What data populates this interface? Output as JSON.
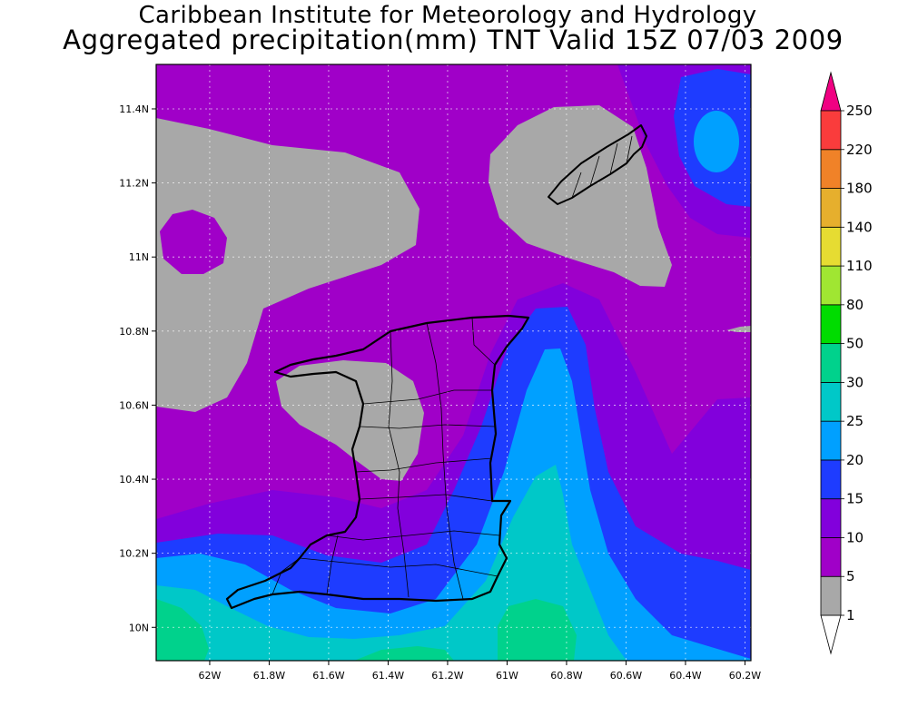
{
  "title": {
    "line1": "Caribbean Institute for Meteorology and Hydrology",
    "line2": "Aggregated precipitation(mm) TNT Valid 15Z 07/03 2009"
  },
  "map": {
    "lon_range": [
      -62.18,
      -60.18
    ],
    "lat_range": [
      9.91,
      11.52
    ],
    "x_ticks": [
      {
        "value": -62.0,
        "label": "62W"
      },
      {
        "value": -61.8,
        "label": "61.8W"
      },
      {
        "value": -61.6,
        "label": "61.6W"
      },
      {
        "value": -61.4,
        "label": "61.4W"
      },
      {
        "value": -61.2,
        "label": "61.2W"
      },
      {
        "value": -61.0,
        "label": "61W"
      },
      {
        "value": -60.8,
        "label": "60.8W"
      },
      {
        "value": -60.6,
        "label": "60.6W"
      },
      {
        "value": -60.4,
        "label": "60.4W"
      },
      {
        "value": -60.2,
        "label": "60.2W"
      }
    ],
    "y_ticks": [
      {
        "value": 10.0,
        "label": "10N"
      },
      {
        "value": 10.2,
        "label": "10.2N"
      },
      {
        "value": 10.4,
        "label": "10.4N"
      },
      {
        "value": 10.6,
        "label": "10.6N"
      },
      {
        "value": 10.8,
        "label": "10.8N"
      },
      {
        "value": 11.0,
        "label": "11N"
      },
      {
        "value": 11.2,
        "label": "11.2N"
      },
      {
        "value": 11.4,
        "label": "11.4N"
      }
    ],
    "grid": true
  },
  "colorbar": {
    "levels": [
      {
        "label": "1",
        "color": "#ffffff"
      },
      {
        "label": "5",
        "color": "#a8a8a8"
      },
      {
        "label": "10",
        "color": "#a000c8"
      },
      {
        "label": "15",
        "color": "#8200dc"
      },
      {
        "label": "20",
        "color": "#1e3cff"
      },
      {
        "label": "25",
        "color": "#00a0ff"
      },
      {
        "label": "30",
        "color": "#00c8c8"
      },
      {
        "label": "50",
        "color": "#00d28c"
      },
      {
        "label": "80",
        "color": "#00dc00"
      },
      {
        "label": "110",
        "color": "#a0e632"
      },
      {
        "label": "140",
        "color": "#e6dc32"
      },
      {
        "label": "180",
        "color": "#e6af2d"
      },
      {
        "label": "220",
        "color": "#f08228"
      },
      {
        "label": "250",
        "color": "#fa3c3c"
      }
    ],
    "top_color": "#f00082"
  }
}
